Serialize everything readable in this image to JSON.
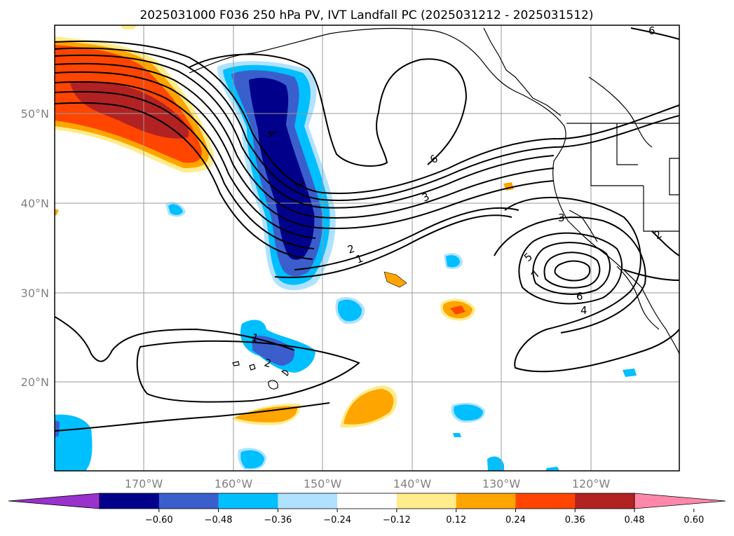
{
  "title": "2025031000 F036 250 hPa PV, IVT Landfall PC (2025031212 - 2025031512)",
  "latitude_labels": [
    "50°N",
    "40°N",
    "30°N",
    "20°N"
  ],
  "longitude_labels": [
    "170°W",
    "160°W",
    "150°W",
    "140°W",
    "130°W",
    "120°W"
  ],
  "colorbar": {
    "tick_labels": [
      "−0.60",
      "−0.48",
      "−0.36",
      "−0.24",
      "−0.12",
      "0.12",
      "0.24",
      "0.36",
      "0.48",
      "0.60"
    ],
    "colors": [
      "#9932cc",
      "#00008b",
      "#3a5fcd",
      "#00bfff",
      "#b0e2ff",
      "#ffffff",
      "#ffec8b",
      "#ffa500",
      "#ff4500",
      "#b22222",
      "#ff88aa"
    ]
  },
  "contour_labels": {
    "jet": [
      "6",
      "3",
      "2",
      "1"
    ],
    "west_axis": [
      "4",
      "2"
    ],
    "low": [
      "3",
      "5",
      "7",
      "6",
      "4"
    ],
    "trough": [
      "1",
      "2"
    ],
    "edge": [
      "6",
      "2"
    ]
  }
}
